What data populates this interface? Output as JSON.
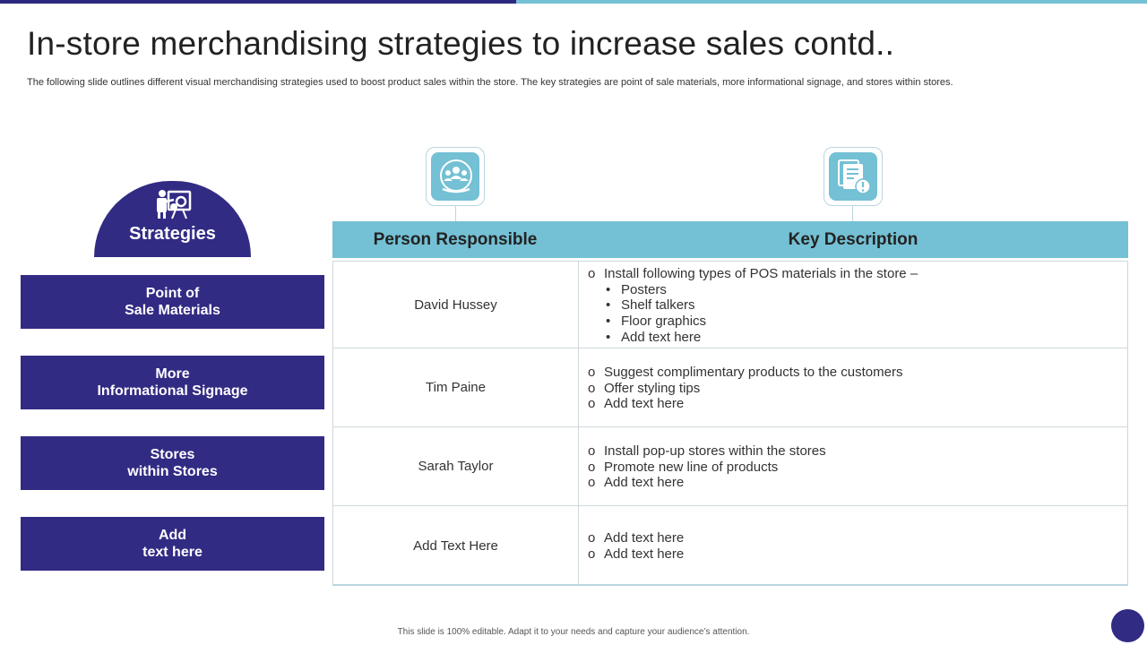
{
  "title": "In-store merchandising strategies to increase sales contd..",
  "subtitle": "The following slide outlines different visual merchandising strategies used to boost product sales within the store. The key strategies are point of sale materials, more informational signage, and stores within stores.",
  "strategies": {
    "heading": "Strategies",
    "heading_icon": "presenter-icon",
    "items": [
      "Point of\nSale Materials",
      "More\nInformational Signage",
      "Stores\nwithin Stores",
      "Add\ntext here"
    ]
  },
  "table": {
    "columns": [
      {
        "label": "Person Responsible",
        "icon": "team-icon"
      },
      {
        "label": "Key Description",
        "icon": "document-alert-icon"
      }
    ],
    "rows": [
      {
        "person": "David Hussey",
        "lines": [
          {
            "marker": "o",
            "text": "Install following types of POS materials in the store –"
          },
          {
            "marker": "•",
            "text": "Posters"
          },
          {
            "marker": "•",
            "text": "Shelf talkers"
          },
          {
            "marker": "•",
            "text": "Floor graphics"
          },
          {
            "marker": "•",
            "text": "Add text here"
          }
        ]
      },
      {
        "person": "Tim Paine",
        "lines": [
          {
            "marker": "o",
            "text": "Suggest complimentary products to the customers"
          },
          {
            "marker": "o",
            "text": "Offer styling tips"
          },
          {
            "marker": "o",
            "text": "Add text here"
          }
        ]
      },
      {
        "person": "Sarah Taylor",
        "lines": [
          {
            "marker": "o",
            "text": "Install pop-up stores within the stores"
          },
          {
            "marker": "o",
            "text": "Promote new line of products"
          },
          {
            "marker": "o",
            "text": "Add text here"
          }
        ]
      },
      {
        "person": "Add Text Here",
        "lines": [
          {
            "marker": "o",
            "text": "Add text here"
          },
          {
            "marker": "o",
            "text": "Add text here"
          }
        ]
      }
    ]
  },
  "footer": "This slide is 100% editable.  Adapt it to your needs and capture your audience’s attention.",
  "colors": {
    "primary": "#322b84",
    "accent": "#74c0d4"
  }
}
